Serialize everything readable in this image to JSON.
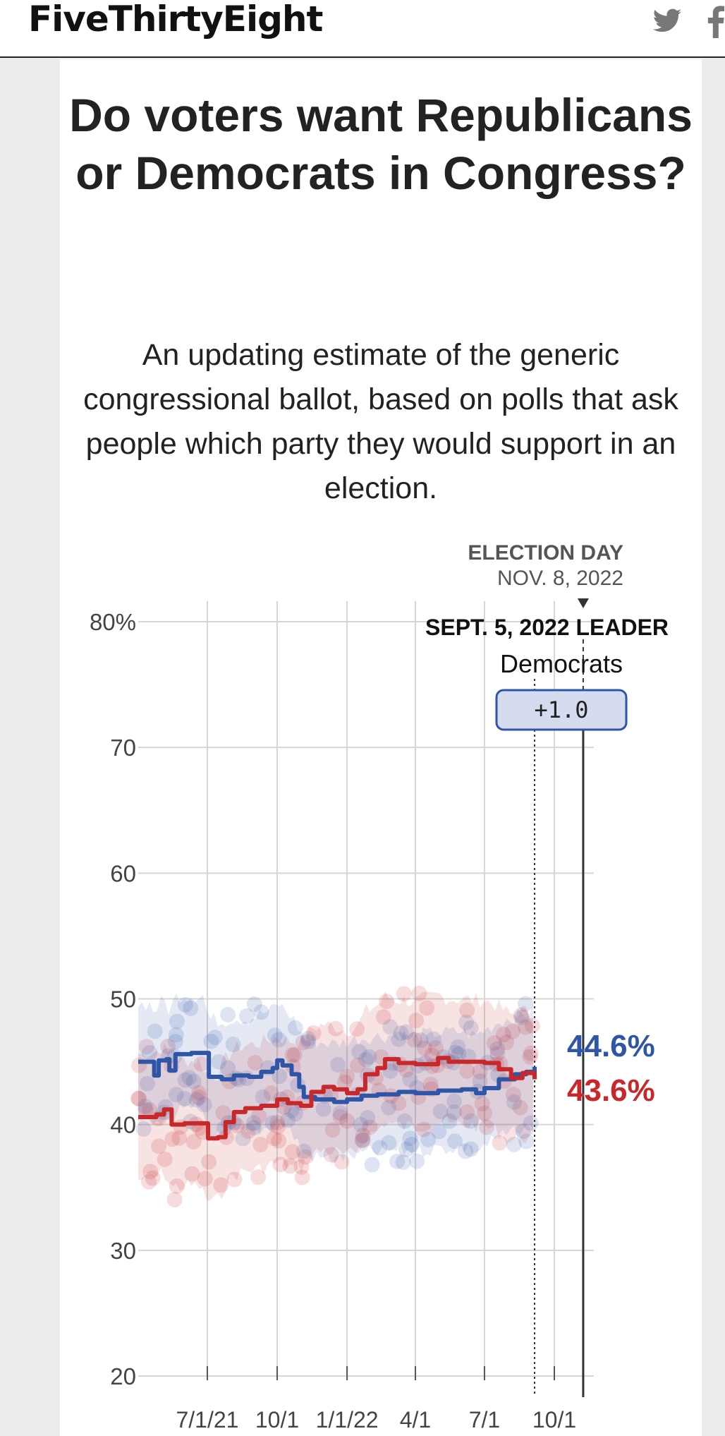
{
  "header": {
    "logo": "FiveThirtyEight",
    "icons": [
      "twitter-icon",
      "facebook-icon"
    ]
  },
  "article": {
    "title": "Do voters want Republicans or Democrats in Congress?",
    "subtitle": "An updating estimate of the generic congressional ballot, based on polls that ask people which party they would support in an election."
  },
  "colors": {
    "dem": "#2f55a7",
    "rep": "#c8282a",
    "grid": "#d6d6d6",
    "badge_fill": "#d6dcef",
    "badge_border": "#2f55a7"
  },
  "chart_data": {
    "type": "line",
    "ylim": [
      20,
      80
    ],
    "y_ticks": [
      {
        "value": 80,
        "label": "80%"
      },
      {
        "value": 70,
        "label": "70"
      },
      {
        "value": 60,
        "label": "60"
      },
      {
        "value": 50,
        "label": "50"
      },
      {
        "value": 40,
        "label": "40"
      },
      {
        "value": 30,
        "label": "30"
      },
      {
        "value": 20,
        "label": "20"
      }
    ],
    "xlim": [
      "2021-04-01",
      "2022-11-22"
    ],
    "x_ticks": [
      {
        "date": "2021-07-01",
        "label": "7/1/21"
      },
      {
        "date": "2021-10-01",
        "label": "10/1"
      },
      {
        "date": "2022-01-01",
        "label": "1/1/22"
      },
      {
        "date": "2022-04-01",
        "label": "4/1"
      },
      {
        "date": "2022-07-01",
        "label": "7/1"
      },
      {
        "date": "2022-10-01",
        "label": "10/1"
      }
    ],
    "election_day": {
      "title": "ELECTION DAY",
      "date_label": "NOV. 8, 2022",
      "date": "2022-11-08"
    },
    "current": {
      "date": "2022-09-05",
      "header": "SEPT. 5, 2022 LEADER",
      "leader": "Democrats",
      "margin": "+1.0"
    },
    "series": [
      {
        "party": "dem",
        "end_label": "44.6%",
        "points": [
          [
            "2021-04-01",
            45.0
          ],
          [
            "2021-04-20",
            45.0
          ],
          [
            "2021-04-22",
            43.9
          ],
          [
            "2021-04-28",
            45.1
          ],
          [
            "2021-05-08",
            45.2
          ],
          [
            "2021-05-12",
            44.3
          ],
          [
            "2021-05-20",
            45.6
          ],
          [
            "2021-06-10",
            45.7
          ],
          [
            "2021-06-25",
            45.7
          ],
          [
            "2021-07-03",
            43.8
          ],
          [
            "2021-07-20",
            43.6
          ],
          [
            "2021-08-05",
            43.9
          ],
          [
            "2021-08-25",
            43.8
          ],
          [
            "2021-09-10",
            44.2
          ],
          [
            "2021-09-25",
            44.5
          ],
          [
            "2021-10-01",
            45.1
          ],
          [
            "2021-10-08",
            44.7
          ],
          [
            "2021-10-20",
            44.0
          ],
          [
            "2021-10-30",
            43.0
          ],
          [
            "2021-11-05",
            42.2
          ],
          [
            "2021-11-20",
            42.0
          ],
          [
            "2021-12-15",
            41.8
          ],
          [
            "2022-01-01",
            42.0
          ],
          [
            "2022-01-20",
            42.3
          ],
          [
            "2022-02-10",
            42.4
          ],
          [
            "2022-03-10",
            42.6
          ],
          [
            "2022-04-01",
            42.5
          ],
          [
            "2022-05-01",
            42.7
          ],
          [
            "2022-06-01",
            42.8
          ],
          [
            "2022-06-20",
            42.5
          ],
          [
            "2022-07-01",
            42.9
          ],
          [
            "2022-07-20",
            43.6
          ],
          [
            "2022-08-10",
            44.0
          ],
          [
            "2022-08-25",
            44.2
          ],
          [
            "2022-09-05",
            44.6
          ]
        ]
      },
      {
        "party": "rep",
        "end_label": "43.6%",
        "points": [
          [
            "2021-04-01",
            40.6
          ],
          [
            "2021-04-25",
            40.8
          ],
          [
            "2021-05-05",
            41.2
          ],
          [
            "2021-05-15",
            40.0
          ],
          [
            "2021-06-01",
            40.1
          ],
          [
            "2021-06-20",
            40.1
          ],
          [
            "2021-07-02",
            38.9
          ],
          [
            "2021-07-15",
            39.0
          ],
          [
            "2021-07-25",
            40.2
          ],
          [
            "2021-08-05",
            41.0
          ],
          [
            "2021-08-20",
            41.3
          ],
          [
            "2021-09-10",
            41.5
          ],
          [
            "2021-10-01",
            42.0
          ],
          [
            "2021-10-15",
            41.7
          ],
          [
            "2021-11-01",
            41.5
          ],
          [
            "2021-11-15",
            42.6
          ],
          [
            "2021-12-01",
            43.0
          ],
          [
            "2021-12-15",
            42.8
          ],
          [
            "2022-01-01",
            42.5
          ],
          [
            "2022-01-15",
            42.8
          ],
          [
            "2022-01-25",
            44.0
          ],
          [
            "2022-02-10",
            44.5
          ],
          [
            "2022-02-20",
            45.2
          ],
          [
            "2022-03-10",
            44.9
          ],
          [
            "2022-04-01",
            44.8
          ],
          [
            "2022-05-01",
            45.3
          ],
          [
            "2022-05-15",
            45.0
          ],
          [
            "2022-06-01",
            45.0
          ],
          [
            "2022-07-01",
            44.9
          ],
          [
            "2022-07-20",
            44.4
          ],
          [
            "2022-08-05",
            43.7
          ],
          [
            "2022-08-20",
            44.1
          ],
          [
            "2022-09-05",
            43.6
          ]
        ]
      }
    ],
    "grid": true
  }
}
